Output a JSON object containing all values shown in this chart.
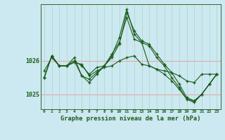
{
  "title": "Graphe pression niveau de la mer (hPa)",
  "bg_color": "#cce8f0",
  "grid_color_vert": "#a8d8c8",
  "grid_color_horiz_pink": "#e8a0a0",
  "line_color": "#1a5c1a",
  "ylim": [
    1024.55,
    1027.7
  ],
  "yticks": [
    1025,
    1026
  ],
  "series": [
    [
      1025.7,
      1026.1,
      1025.85,
      1025.85,
      1025.95,
      1025.9,
      1025.55,
      1025.7,
      1025.8,
      1025.85,
      1026.0,
      1026.1,
      1026.15,
      1025.9,
      1025.85,
      1025.75,
      1025.7,
      1025.65,
      1025.55,
      1025.4,
      1025.35,
      1025.6,
      1025.6,
      1025.6
    ],
    [
      1025.5,
      1026.15,
      1025.85,
      1025.85,
      1026.0,
      1025.85,
      1025.6,
      1025.8,
      1025.85,
      1026.2,
      1026.55,
      1027.3,
      1026.65,
      1026.55,
      1025.85,
      1025.75,
      1025.6,
      1025.4,
      1025.15,
      1024.85,
      1024.8,
      1025.0,
      1025.3,
      1025.6
    ],
    [
      1025.5,
      1026.15,
      1025.85,
      1025.85,
      1026.0,
      1025.55,
      1025.45,
      1025.65,
      1025.85,
      1026.1,
      1026.5,
      1027.45,
      1026.9,
      1026.6,
      1026.5,
      1026.2,
      1025.9,
      1025.65,
      1025.3,
      1024.9,
      1024.8,
      1025.0,
      1025.3,
      1025.6
    ],
    [
      1025.5,
      1026.15,
      1025.85,
      1025.85,
      1026.1,
      1025.55,
      1025.35,
      1025.6,
      1025.85,
      1026.15,
      1026.7,
      1027.55,
      1026.8,
      1026.55,
      1026.45,
      1026.1,
      1025.85,
      1025.5,
      1025.2,
      1024.85,
      1024.75,
      1025.0,
      1025.3,
      1025.6
    ]
  ]
}
